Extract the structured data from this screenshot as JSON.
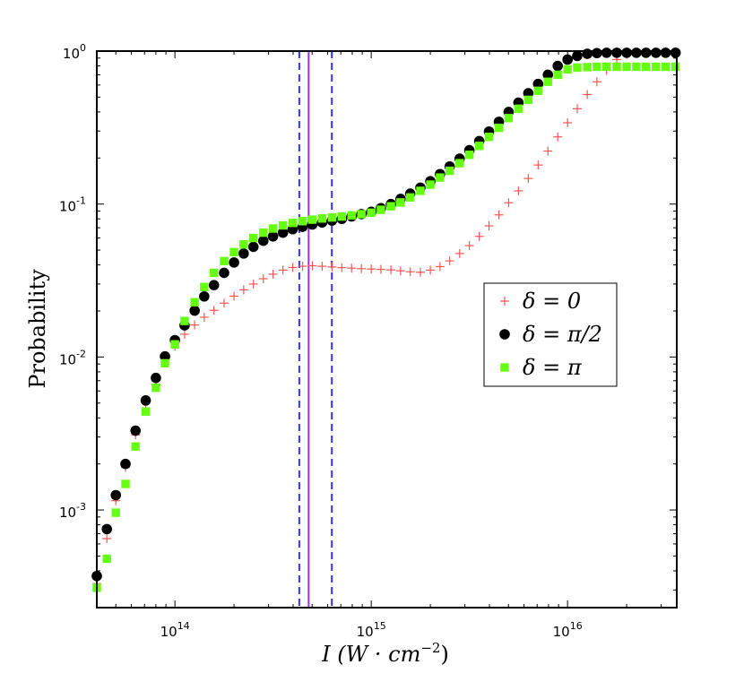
{
  "chart_data": {
    "type": "scatter",
    "title": "",
    "xlabel": "I (W · cm",
    "xlabel_sup": "−2",
    "xlabel_close": ")",
    "ylabel": "Probability",
    "xscale": "log",
    "yscale": "log",
    "xlim": [
      40000000000000.0,
      3.6e+16
    ],
    "ylim": [
      0.00023,
      1.0
    ],
    "xticks": [
      {
        "base": "10",
        "exp": "14",
        "value": 100000000000000.0
      },
      {
        "base": "10",
        "exp": "15",
        "value": 1000000000000000.0
      },
      {
        "base": "10",
        "exp": "16",
        "value": 1e+16
      }
    ],
    "yticks": [
      {
        "base": "10",
        "exp": "0",
        "value": 1
      },
      {
        "base": "10",
        "exp": "-1",
        "value": 0.1
      },
      {
        "base": "10",
        "exp": "-2",
        "value": 0.01
      },
      {
        "base": "10",
        "exp": "-3",
        "value": 0.001
      }
    ],
    "vlines": [
      {
        "x": 430000000000000.0,
        "style": "dashed",
        "color": "#3333ff"
      },
      {
        "x": 480000000000000.0,
        "style": "solid",
        "color": "#9933ee"
      },
      {
        "x": 630000000000000.0,
        "style": "dashed",
        "color": "#3333ff"
      }
    ],
    "legend_position": "center-right",
    "series": [
      {
        "name": "δ = 0",
        "marker": "plus",
        "color": "#ff5555",
        "x": [
          40000000000000.0,
          45000000000000.0,
          50000000000000.0,
          56000000000000.0,
          63000000000000.0,
          71000000000000.0,
          80000000000000.0,
          89000000000000.0,
          100000000000000.0,
          112000000000000.0,
          126000000000000.0,
          141000000000000.0,
          158000000000000.0,
          178000000000000.0,
          200000000000000.0,
          224000000000000.0,
          251000000000000.0,
          282000000000000.0,
          316000000000000.0,
          355000000000000.0,
          398000000000000.0,
          447000000000000.0,
          501000000000000.0,
          562000000000000.0,
          631000000000000.0,
          708000000000000.0,
          794000000000000.0,
          891000000000000.0,
          1000000000000000.0,
          1120000000000000.0,
          1260000000000000.0,
          1410000000000000.0,
          1580000000000000.0,
          1780000000000000.0,
          2000000000000000.0,
          2240000000000000.0,
          2510000000000000.0,
          2820000000000000.0,
          3160000000000000.0,
          3550000000000000.0,
          3980000000000000.0,
          4470000000000000.0,
          5010000000000000.0,
          5620000000000000.0,
          6310000000000000.0,
          7080000000000000.0,
          7940000000000000.0,
          8910000000000000.0,
          1e+16,
          1.12e+16,
          1.26e+16,
          1.41e+16,
          1.58e+16,
          1.78e+16,
          2e+16,
          2.24e+16,
          2.51e+16,
          2.82e+16,
          3.16e+16,
          3.55e+16
        ],
        "y": [
          0.00033,
          0.00065,
          0.00115,
          0.0019,
          0.0031,
          0.0045,
          0.0066,
          0.0093,
          0.0118,
          0.0141,
          0.0162,
          0.0182,
          0.0202,
          0.0225,
          0.025,
          0.0275,
          0.03,
          0.0325,
          0.0348,
          0.037,
          0.0385,
          0.0392,
          0.0395,
          0.0392,
          0.0388,
          0.0384,
          0.0381,
          0.0378,
          0.0376,
          0.0374,
          0.0371,
          0.0366,
          0.0361,
          0.0358,
          0.037,
          0.039,
          0.0425,
          0.0475,
          0.0535,
          0.0615,
          0.072,
          0.085,
          0.102,
          0.122,
          0.147,
          0.18,
          0.222,
          0.275,
          0.34,
          0.42,
          0.52,
          0.63,
          0.75,
          0.88,
          0.95,
          0.97,
          0.98,
          0.985,
          0.99,
          0.99
        ]
      },
      {
        "name": "δ = π/2",
        "marker": "circle",
        "color": "#000000",
        "x": [
          40000000000000.0,
          45000000000000.0,
          50000000000000.0,
          56000000000000.0,
          63000000000000.0,
          71000000000000.0,
          80000000000000.0,
          89000000000000.0,
          100000000000000.0,
          112000000000000.0,
          126000000000000.0,
          141000000000000.0,
          158000000000000.0,
          178000000000000.0,
          200000000000000.0,
          224000000000000.0,
          251000000000000.0,
          282000000000000.0,
          316000000000000.0,
          355000000000000.0,
          398000000000000.0,
          447000000000000.0,
          501000000000000.0,
          562000000000000.0,
          631000000000000.0,
          708000000000000.0,
          794000000000000.0,
          891000000000000.0,
          1000000000000000.0,
          1120000000000000.0,
          1260000000000000.0,
          1410000000000000.0,
          1580000000000000.0,
          1780000000000000.0,
          2000000000000000.0,
          2240000000000000.0,
          2510000000000000.0,
          2820000000000000.0,
          3160000000000000.0,
          3550000000000000.0,
          3980000000000000.0,
          4470000000000000.0,
          5010000000000000.0,
          5620000000000000.0,
          6310000000000000.0,
          7080000000000000.0,
          7940000000000000.0,
          8910000000000000.0,
          1e+16,
          1.12e+16,
          1.26e+16,
          1.41e+16,
          1.58e+16,
          1.78e+16,
          2e+16,
          2.24e+16,
          2.51e+16,
          2.82e+16,
          3.16e+16,
          3.55e+16
        ],
        "y": [
          0.00037,
          0.00075,
          0.00125,
          0.002,
          0.0033,
          0.0052,
          0.0073,
          0.0101,
          0.0129,
          0.0161,
          0.0201,
          0.0249,
          0.0295,
          0.0355,
          0.0415,
          0.0475,
          0.0525,
          0.0575,
          0.0615,
          0.065,
          0.0685,
          0.071,
          0.0735,
          0.0757,
          0.078,
          0.08,
          0.083,
          0.086,
          0.089,
          0.094,
          0.1,
          0.108,
          0.117,
          0.128,
          0.141,
          0.157,
          0.176,
          0.198,
          0.225,
          0.258,
          0.298,
          0.345,
          0.4,
          0.46,
          0.53,
          0.61,
          0.7,
          0.8,
          0.88,
          0.93,
          0.96,
          0.97,
          0.975,
          0.975,
          0.975,
          0.975,
          0.975,
          0.975,
          0.975,
          0.975
        ]
      },
      {
        "name": "δ = π",
        "marker": "square",
        "color": "#66ff11",
        "x": [
          40000000000000.0,
          45000000000000.0,
          50000000000000.0,
          56000000000000.0,
          63000000000000.0,
          71000000000000.0,
          80000000000000.0,
          89000000000000.0,
          100000000000000.0,
          112000000000000.0,
          126000000000000.0,
          141000000000000.0,
          158000000000000.0,
          178000000000000.0,
          200000000000000.0,
          224000000000000.0,
          251000000000000.0,
          282000000000000.0,
          316000000000000.0,
          355000000000000.0,
          398000000000000.0,
          447000000000000.0,
          501000000000000.0,
          562000000000000.0,
          631000000000000.0,
          708000000000000.0,
          794000000000000.0,
          891000000000000.0,
          1000000000000000.0,
          1120000000000000.0,
          1260000000000000.0,
          1410000000000000.0,
          1580000000000000.0,
          1780000000000000.0,
          2000000000000000.0,
          2240000000000000.0,
          2510000000000000.0,
          2820000000000000.0,
          3160000000000000.0,
          3550000000000000.0,
          3980000000000000.0,
          4470000000000000.0,
          5010000000000000.0,
          5620000000000000.0,
          6310000000000000.0,
          7080000000000000.0,
          7940000000000000.0,
          8910000000000000.0,
          1e+16,
          1.12e+16,
          1.26e+16,
          1.41e+16,
          1.58e+16,
          1.78e+16,
          2e+16,
          2.24e+16,
          2.51e+16,
          2.82e+16,
          3.16e+16,
          3.55e+16
        ],
        "y": [
          0.00031,
          0.00048,
          0.00096,
          0.00148,
          0.0026,
          0.0044,
          0.0063,
          0.0091,
          0.0121,
          0.0172,
          0.0228,
          0.0287,
          0.0355,
          0.0424,
          0.0485,
          0.0545,
          0.06,
          0.065,
          0.0692,
          0.0725,
          0.0753,
          0.0773,
          0.0791,
          0.0805,
          0.0817,
          0.0829,
          0.0843,
          0.0859,
          0.0878,
          0.0917,
          0.0967,
          0.1025,
          0.1105,
          0.122,
          0.134,
          0.149,
          0.165,
          0.185,
          0.21,
          0.24,
          0.275,
          0.315,
          0.365,
          0.42,
          0.48,
          0.55,
          0.63,
          0.7,
          0.76,
          0.78,
          0.785,
          0.79,
          0.79,
          0.79,
          0.79,
          0.79,
          0.79,
          0.79,
          0.79,
          0.79
        ]
      }
    ]
  }
}
